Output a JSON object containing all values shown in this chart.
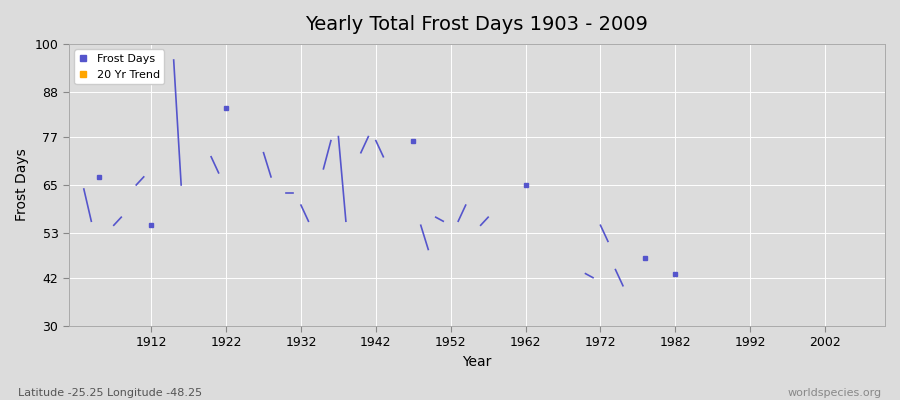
{
  "title": "Yearly Total Frost Days 1903 - 2009",
  "xlabel": "Year",
  "ylabel": "Frost Days",
  "xlim": [
    1901,
    2010
  ],
  "ylim": [
    30,
    100
  ],
  "yticks": [
    30,
    42,
    53,
    65,
    77,
    88,
    100
  ],
  "xticks": [
    1912,
    1922,
    1932,
    1942,
    1952,
    1962,
    1972,
    1982,
    1992,
    2002
  ],
  "background_color": "#dcdcdc",
  "plot_bg_color": "#dcdcdc",
  "line_color": "#5555cc",
  "footer_left": "Latitude -25.25 Longitude -48.25",
  "footer_right": "worldspecies.org",
  "segments": [
    [
      [
        1903,
        64
      ],
      [
        1904,
        56
      ]
    ],
    [
      [
        1905,
        67
      ]
    ],
    [
      [
        1907,
        55
      ],
      [
        1908,
        57
      ]
    ],
    [
      [
        1910,
        65
      ],
      [
        1911,
        67
      ]
    ],
    [
      [
        1912,
        55
      ]
    ],
    [
      [
        1915,
        96
      ],
      [
        1916,
        65
      ]
    ],
    [
      [
        1920,
        72
      ],
      [
        1921,
        68
      ]
    ],
    [
      [
        1922,
        84
      ]
    ],
    [
      [
        1927,
        73
      ],
      [
        1928,
        67
      ]
    ],
    [
      [
        1930,
        63
      ],
      [
        1931,
        63
      ]
    ],
    [
      [
        1932,
        60
      ],
      [
        1933,
        56
      ]
    ],
    [
      [
        1935,
        69
      ],
      [
        1936,
        76
      ]
    ],
    [
      [
        1937,
        77
      ],
      [
        1938,
        56
      ]
    ],
    [
      [
        1940,
        73
      ],
      [
        1941,
        77
      ]
    ],
    [
      [
        1942,
        76
      ],
      [
        1943,
        72
      ]
    ],
    [
      [
        1947,
        76
      ]
    ],
    [
      [
        1948,
        55
      ],
      [
        1949,
        49
      ]
    ],
    [
      [
        1950,
        57
      ],
      [
        1951,
        56
      ]
    ],
    [
      [
        1953,
        56
      ],
      [
        1954,
        60
      ]
    ],
    [
      [
        1956,
        55
      ],
      [
        1957,
        57
      ]
    ],
    [
      [
        1962,
        65
      ]
    ],
    [
      [
        1970,
        43
      ],
      [
        1971,
        42
      ]
    ],
    [
      [
        1972,
        55
      ],
      [
        1973,
        51
      ]
    ],
    [
      [
        1974,
        44
      ],
      [
        1975,
        40
      ]
    ],
    [
      [
        1978,
        47
      ]
    ],
    [
      [
        1982,
        43
      ]
    ]
  ]
}
